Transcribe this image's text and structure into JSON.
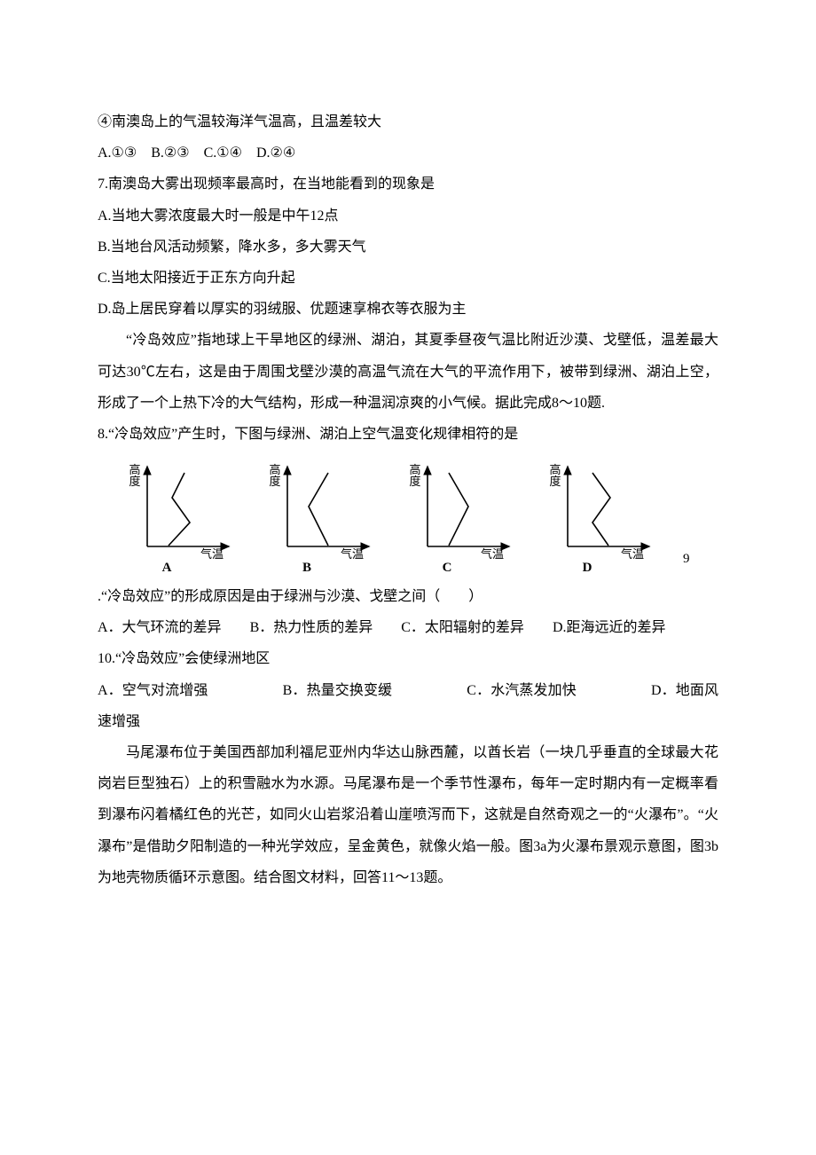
{
  "l1": "④南澳岛上的气温较海洋气温高，且温差较大",
  "l2": "A.①③　B.②③　C.①④　D.②④",
  "l3": "7.南澳岛大雾出现频率最高时，在当地能看到的现象是",
  "l4": "A.当地大雾浓度最大时一般是中午12点",
  "l5": "B.当地台风活动频繁，降水多，多大雾天气",
  "l6": "C.当地太阳接近于正东方向升起",
  "l7": "D.岛上居民穿着以厚实的羽绒服、优题速享棉衣等衣服为主",
  "p1": "“冷岛效应”指地球上干旱地区的绿洲、湖泊，其夏季昼夜气温比附近沙漠、戈壁低，温差最大可达30℃左右，这是由于周围戈壁沙漠的高温气流在大气的平流作用下，被带到绿洲、湖泊上空，形成了一个上热下冷的大气结构，形成一种温润凉爽的小气候。据此完成8～10题.",
  "q8": "8.“冷岛效应”产生时，下图与绿洲、湖泊上空气温变化规律相符的是",
  "charts": {
    "type": "line-sketch",
    "axis_color": "#000000",
    "line_color": "#000000",
    "label_font": 13,
    "y_label": "高度",
    "x_label": "气温",
    "items": [
      {
        "id": "A",
        "points": [
          [
            58,
            18
          ],
          [
            44,
            46
          ],
          [
            64,
            74
          ],
          [
            40,
            100
          ]
        ]
      },
      {
        "id": "B",
        "points": [
          [
            62,
            18
          ],
          [
            40,
            56
          ],
          [
            62,
            100
          ]
        ]
      },
      {
        "id": "C",
        "points": [
          [
            40,
            18
          ],
          [
            62,
            56
          ],
          [
            40,
            100
          ]
        ]
      },
      {
        "id": "D",
        "points": [
          [
            44,
            18
          ],
          [
            64,
            46
          ],
          [
            44,
            74
          ],
          [
            62,
            100
          ]
        ]
      }
    ]
  },
  "trail9": "9",
  "q9": ".“冷岛效应”的形成原因是由于绿洲与沙漠、戈壁之间（　　）",
  "q9a": "A．大气环流的差异",
  "q9b": "B．热力性质的差异",
  "q9c": "C．太阳辐射的差异",
  "q9d": "D.距海远近的差异",
  "q10": "10.“冷岛效应”会使绿洲地区",
  "q10a": "A．空气对流增强",
  "q10b": "B．热量交换变缓",
  "q10c": "C．水汽蒸发加快",
  "q10d": "D．地面风速增强",
  "p2": "马尾瀑布位于美国西部加利福尼亚州内华达山脉西麓，以酋长岩（一块几乎垂直的全球最大花岗岩巨型独石）上的积雪融水为水源。马尾瀑布是一个季节性瀑布，每年一定时期内有一定概率看到瀑布闪着橘红色的光芒，如同火山岩浆沿着山崖喷泻而下，这就是自然奇观之一的“火瀑布”。“火瀑布”是借助夕阳制造的一种光学效应，呈金黄色，就像火焰一般。图3a为火瀑布景观示意图，图3b为地壳物质循环示意图。结合图文材料，回答11～13题。"
}
